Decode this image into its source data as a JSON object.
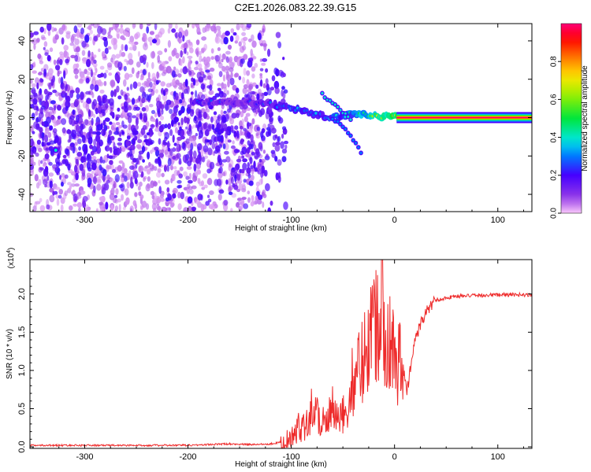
{
  "title": "C2E1.2026.083.22.39.G15",
  "chart_data": [
    {
      "type": "heatmap",
      "panel": "top",
      "xlabel": "Height of straight line (km)",
      "ylabel": "Frequency (Hz)",
      "xlim": [
        -353,
        133
      ],
      "ylim": [
        -49,
        49
      ],
      "xticks": [
        -300,
        -200,
        -100,
        0,
        100
      ],
      "xtick_labels": [
        "-300",
        "-200",
        "-100",
        "0",
        "100"
      ],
      "yticks": [
        -40,
        -20,
        0,
        20,
        40
      ],
      "ytick_labels": [
        "-40",
        "-20",
        "0",
        "20",
        "40"
      ],
      "colorbar": {
        "label": "Normalized spectral amplitude",
        "range": [
          0,
          1
        ],
        "ticks": [
          0.0,
          0.2,
          0.4,
          0.6,
          0.8
        ],
        "tick_labels": [
          "0.0",
          "0.2",
          "0.4",
          "0.6",
          "0.8"
        ]
      },
      "features": [
        {
          "name": "diffuse noise",
          "x_range": [
            -353,
            -125
          ],
          "freq_range": [
            -49,
            49
          ],
          "amplitude": 0.05
        },
        {
          "name": "main ridge",
          "x": [
            -190,
            -150,
            -120,
            -100,
            -80,
            -60,
            -40,
            -20,
            0,
            133
          ],
          "freq": [
            8,
            8,
            7,
            5,
            2,
            0,
            2,
            1,
            0.5,
            0
          ],
          "amplitude": [
            0.3,
            0.25,
            0.35,
            0.45,
            0.4,
            0.45,
            0.55,
            0.75,
            0.95,
            1.0
          ]
        },
        {
          "name": "branch 1",
          "x": [
            -70,
            -55,
            -40
          ],
          "freq": [
            12,
            5,
            -2
          ],
          "amplitude": 0.4
        },
        {
          "name": "branch 2",
          "x": [
            -60,
            -45,
            -30
          ],
          "freq": [
            0,
            -8,
            -20
          ],
          "amplitude": 0.3
        },
        {
          "name": "bright spot",
          "x": [
            -328
          ],
          "freq": [
            -17
          ],
          "amplitude": 0.4
        }
      ]
    },
    {
      "type": "line",
      "panel": "bottom",
      "xlabel": "Height of straight line (km)",
      "ylabel": "SNR (10 * v/v)",
      "y_scale_label": "(x10",
      "y_scale_exp": "4",
      "y_scale_close": ")",
      "xlim": [
        -353,
        133
      ],
      "ylim": [
        -0.02,
        2.45
      ],
      "xticks": [
        -300,
        -200,
        -100,
        0,
        100
      ],
      "xtick_labels": [
        "-300",
        "-200",
        "-100",
        "0",
        "100"
      ],
      "yticks": [
        0.0,
        0.5,
        1.0,
        1.5,
        2.0
      ],
      "ytick_labels": [
        "0.0",
        "0.5",
        "1.0",
        "1.5",
        "2.0"
      ],
      "color": "#ee2a2a",
      "series": [
        {
          "name": "SNR",
          "x": [
            -353,
            -200,
            -160,
            -140,
            -120,
            -110,
            -100,
            -95,
            -90,
            -85,
            -80,
            -75,
            -70,
            -65,
            -60,
            -55,
            -50,
            -45,
            -40,
            -35,
            -30,
            -25,
            -20,
            -15,
            -12,
            -10,
            -5,
            0,
            5,
            10,
            12,
            15,
            20,
            25,
            30,
            35,
            40,
            50,
            60,
            80,
            100,
            133
          ],
          "y": [
            0.02,
            0.02,
            0.04,
            0.03,
            0.04,
            0.06,
            0.1,
            0.2,
            0.3,
            0.35,
            0.5,
            0.45,
            0.35,
            0.3,
            0.5,
            0.3,
            0.4,
            0.55,
            0.9,
            1.0,
            1.2,
            1.5,
            1.6,
            1.7,
            2.4,
            1.6,
            1.4,
            1.2,
            1.1,
            0.9,
            0.7,
            1.0,
            1.4,
            1.6,
            1.75,
            1.85,
            1.92,
            1.95,
            1.97,
            1.98,
            1.99,
            1.99
          ]
        }
      ]
    }
  ]
}
